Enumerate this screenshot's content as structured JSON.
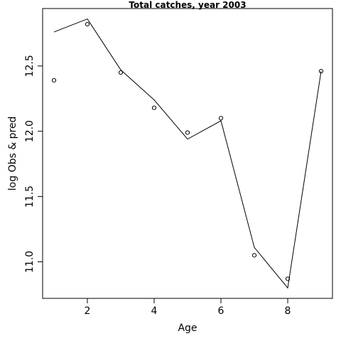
{
  "chart_data": {
    "type": "line",
    "title": "Total catches, year 2003",
    "xlabel": "Age",
    "ylabel": "log Obs & pred",
    "x": [
      1,
      2,
      3,
      4,
      5,
      6,
      7,
      8,
      9
    ],
    "series": [
      {
        "kind": "line",
        "values": [
          12.76,
          12.86,
          12.47,
          12.24,
          11.94,
          12.08,
          11.11,
          10.8,
          12.46
        ]
      },
      {
        "kind": "points",
        "values": [
          12.39,
          12.82,
          12.45,
          12.18,
          11.99,
          12.1,
          11.05,
          10.87,
          12.46
        ]
      }
    ],
    "xlim": [
      0.66,
      9.34
    ],
    "ylim": [
      10.72,
      12.94
    ],
    "xticks": [
      2,
      4,
      6,
      8
    ],
    "yticks": [
      11.0,
      11.5,
      12.0,
      12.5
    ],
    "grid": false,
    "legend": "none"
  }
}
